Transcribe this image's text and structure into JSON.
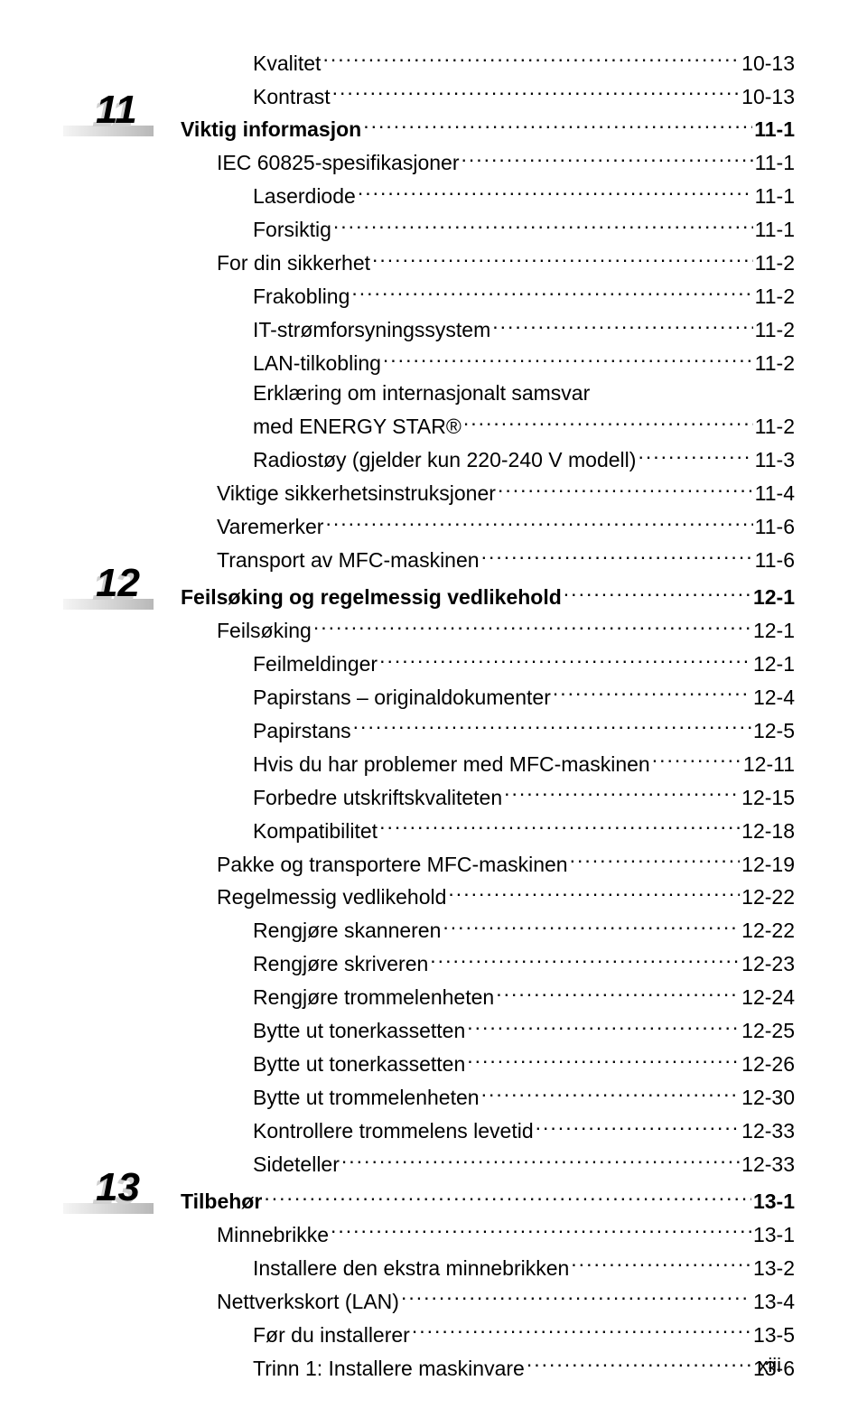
{
  "chapters": [
    {
      "number": "11",
      "number_top_offset": 80,
      "rows": [
        {
          "indent": 2,
          "bold": false,
          "label": "Kvalitet",
          "page": "10-13"
        },
        {
          "indent": 2,
          "bold": false,
          "label": "Kontrast",
          "page": "10-13"
        },
        {
          "indent": 0,
          "bold": true,
          "label": "Viktig informasjon",
          "page": "11-1"
        },
        {
          "indent": 1,
          "bold": false,
          "label": "IEC 60825-spesifikasjoner",
          "page": "11-1"
        },
        {
          "indent": 2,
          "bold": false,
          "label": "Laserdiode",
          "page": "11-1"
        },
        {
          "indent": 2,
          "bold": false,
          "label": "Forsiktig",
          "page": "11-1"
        },
        {
          "indent": 1,
          "bold": false,
          "label": "For din sikkerhet",
          "page": "11-2"
        },
        {
          "indent": 2,
          "bold": false,
          "label": "Frakobling",
          "page": "11-2"
        },
        {
          "indent": 2,
          "bold": false,
          "label": "IT-strømforsyningssystem",
          "page": "11-2"
        },
        {
          "indent": 2,
          "bold": false,
          "label": "LAN-tilkobling",
          "page": "11-2"
        },
        {
          "indent": 2,
          "bold": false,
          "label": "Erklæring om internasjonalt samsvar",
          "page": ""
        },
        {
          "indent": 2,
          "bold": false,
          "label": "med ENERGY STAR®",
          "page": "11-2",
          "smallcaps_start": 4,
          "smallcaps_end": 15
        },
        {
          "indent": 2,
          "bold": false,
          "label": "Radiostøy (gjelder kun 220-240 V modell)",
          "page": "11-3"
        },
        {
          "indent": 1,
          "bold": false,
          "label": "Viktige sikkerhetsinstruksjoner",
          "page": "11-4"
        },
        {
          "indent": 1,
          "bold": false,
          "label": "Varemerker",
          "page": "11-6"
        },
        {
          "indent": 1,
          "bold": false,
          "label": "Transport av MFC-maskinen",
          "page": "11-6"
        }
      ]
    },
    {
      "number": "12",
      "number_top_offset": 0,
      "rows": [
        {
          "indent": 0,
          "bold": true,
          "label": "Feilsøking og regelmessig vedlikehold",
          "page": "12-1"
        },
        {
          "indent": 1,
          "bold": false,
          "label": "Feilsøking",
          "page": "12-1"
        },
        {
          "indent": 2,
          "bold": false,
          "label": "Feilmeldinger",
          "page": "12-1"
        },
        {
          "indent": 2,
          "bold": false,
          "label": "Papirstans – originaldokumenter",
          "page": "12-4"
        },
        {
          "indent": 2,
          "bold": false,
          "label": "Papirstans",
          "page": "12-5"
        },
        {
          "indent": 2,
          "bold": false,
          "label": "Hvis du har problemer med MFC-maskinen",
          "page": "12-11"
        },
        {
          "indent": 2,
          "bold": false,
          "label": "Forbedre utskriftskvaliteten",
          "page": "12-15"
        },
        {
          "indent": 2,
          "bold": false,
          "label": "Kompatibilitet",
          "page": "12-18"
        },
        {
          "indent": 1,
          "bold": false,
          "label": "Pakke og transportere MFC-maskinen",
          "page": "12-19"
        },
        {
          "indent": 1,
          "bold": false,
          "label": "Regelmessig vedlikehold",
          "page": "12-22"
        },
        {
          "indent": 2,
          "bold": false,
          "label": "Rengjøre skanneren",
          "page": "12-22"
        },
        {
          "indent": 2,
          "bold": false,
          "label": "Rengjøre skriveren",
          "page": "12-23"
        },
        {
          "indent": 2,
          "bold": false,
          "label": "Rengjøre trommelenheten",
          "page": "12-24"
        },
        {
          "indent": 2,
          "bold": false,
          "label": "Bytte ut tonerkassetten",
          "page": "12-25"
        },
        {
          "indent": 2,
          "bold": false,
          "label": "Bytte ut tonerkassetten",
          "page": "12-26"
        },
        {
          "indent": 2,
          "bold": false,
          "label": "Bytte ut trommelenheten",
          "page": "12-30"
        },
        {
          "indent": 2,
          "bold": false,
          "label": "Kontrollere trommelens levetid",
          "page": "12-33"
        },
        {
          "indent": 2,
          "bold": false,
          "label": "Sideteller",
          "page": "12-33"
        }
      ]
    },
    {
      "number": "13",
      "number_top_offset": 0,
      "rows": [
        {
          "indent": 0,
          "bold": true,
          "label": "Tilbehør",
          "page": "13-1"
        },
        {
          "indent": 1,
          "bold": false,
          "label": "Minnebrikke",
          "page": "13-1"
        },
        {
          "indent": 2,
          "bold": false,
          "label": "Installere den ekstra minnebrikken",
          "page": "13-2"
        },
        {
          "indent": 1,
          "bold": false,
          "label": "Nettverkskort (LAN)",
          "page": "13-4"
        },
        {
          "indent": 2,
          "bold": false,
          "label": "Før du installerer",
          "page": "13-5"
        },
        {
          "indent": 2,
          "bold": false,
          "label": "Trinn 1: Installere maskinvare",
          "page": "13-6"
        }
      ]
    }
  ],
  "page_number": "xiii",
  "colors": {
    "text": "#000000",
    "shadow": "#d0d0d0",
    "background": "#ffffff"
  }
}
